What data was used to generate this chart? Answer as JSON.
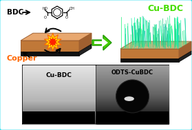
{
  "bg_color": "#ffffff",
  "border_color": "#22ddee",
  "border_lw": 2.2,
  "title_cubdc": "Cu-BDC",
  "title_cubdc_color": "#44dd00",
  "label_bdc": "BDC",
  "label_copper": "Copper",
  "label_copper_color": "#ff6600",
  "label_cubdc_bottom": "Cu-BDC",
  "label_odts": "ODTS-CuBDC",
  "substrate_top": "#e8a870",
  "substrate_front": "#c07838",
  "substrate_black": "#111111",
  "spark_yellow": "#ffee00",
  "spark_orange": "#ff6600",
  "spark_red": "#ff2200",
  "arrow_green": "#44cc00",
  "arrow_green_dark": "#229900"
}
